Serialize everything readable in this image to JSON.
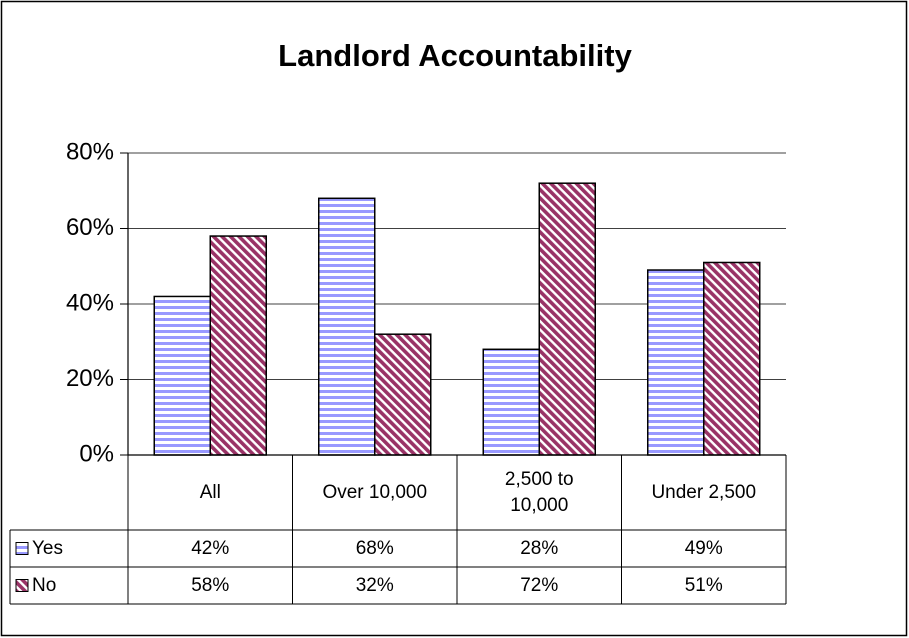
{
  "chart_data": {
    "type": "bar",
    "title": "Landlord Accountability",
    "categories": [
      "All",
      "Over 10,000",
      "2,500 to 10,000",
      "Under 2,500"
    ],
    "series": [
      {
        "name": "Yes",
        "color": "#9999ff",
        "values": [
          42,
          68,
          28,
          49
        ],
        "value_labels": [
          "42%",
          "68%",
          "28%",
          "49%"
        ]
      },
      {
        "name": "No",
        "color": "#993366",
        "values": [
          58,
          32,
          72,
          51
        ],
        "value_labels": [
          "58%",
          "32%",
          "72%",
          "51%"
        ]
      }
    ],
    "ylim": [
      0,
      80
    ],
    "yticks": [
      {
        "value": 0,
        "label": "0%"
      },
      {
        "value": 20,
        "label": "20%"
      },
      {
        "value": 40,
        "label": "40%"
      },
      {
        "value": 60,
        "label": "60%"
      },
      {
        "value": 80,
        "label": "80%"
      }
    ],
    "grid": true
  }
}
